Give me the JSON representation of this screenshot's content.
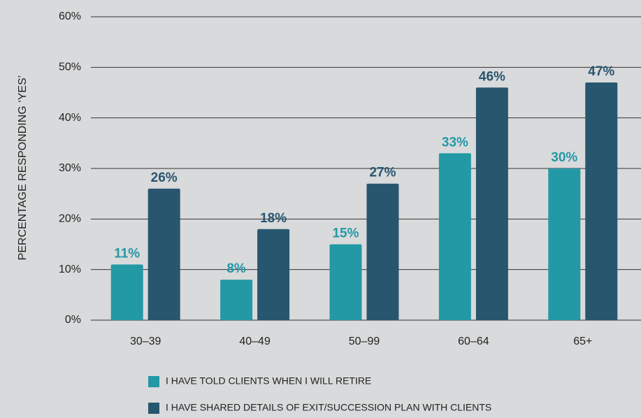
{
  "chart_data": {
    "type": "bar",
    "y_label": "PERCENTAGE RESPONDING ‘YES’",
    "categories": [
      "30–39",
      "40–49",
      "50–99",
      "60–64",
      "65+"
    ],
    "series": [
      {
        "name": "I HAVE TOLD CLIENTS WHEN I WILL RETIRE",
        "color": "#2399a6",
        "values": [
          11,
          8,
          15,
          33,
          30
        ],
        "value_labels": [
          "11%",
          "8%",
          "15%",
          "33%",
          "30%"
        ]
      },
      {
        "name": "I HAVE SHARED DETAILS OF EXIT/SUCCESSION PLAN WITH CLIENTS",
        "color": "#28566f",
        "values": [
          26,
          18,
          27,
          46,
          47
        ],
        "value_labels": [
          "26%",
          "18%",
          "27%",
          "46%",
          "47%"
        ]
      }
    ],
    "ylim": [
      0,
      60
    ],
    "yticks": [
      {
        "value": 0,
        "label": "0%"
      },
      {
        "value": 10,
        "label": "10%"
      },
      {
        "value": 20,
        "label": "20%"
      },
      {
        "value": 30,
        "label": "30%"
      },
      {
        "value": 40,
        "label": "40%"
      },
      {
        "value": 50,
        "label": "50%"
      },
      {
        "value": 60,
        "label": "60%"
      }
    ],
    "grid": true
  }
}
